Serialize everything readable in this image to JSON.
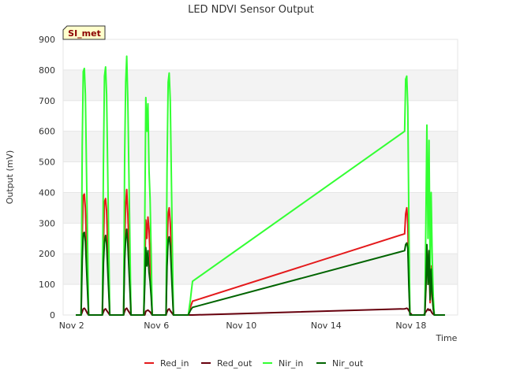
{
  "chart_data": {
    "type": "line",
    "title": "LED NDVI Sensor Output",
    "xlabel": "Time",
    "ylabel": "Output (mV)",
    "site_label": "SI_met",
    "xlim": [
      1.6,
      20.2
    ],
    "ylim": [
      0,
      900
    ],
    "x_unit": "day of November",
    "x_ticks": [
      {
        "x": 2,
        "label": "Nov 2"
      },
      {
        "x": 6,
        "label": "Nov 6"
      },
      {
        "x": 10,
        "label": "Nov 10"
      },
      {
        "x": 14,
        "label": "Nov 14"
      },
      {
        "x": 18,
        "label": "Nov 18"
      }
    ],
    "y_ticks": [
      0,
      100,
      200,
      300,
      400,
      500,
      600,
      700,
      800,
      900
    ],
    "grid": true,
    "legend": {
      "placement": "bottom"
    },
    "series": [
      {
        "name": "Red_in",
        "color": "#e41a1c",
        "x": [
          2.2,
          2.45,
          2.5,
          2.55,
          2.6,
          2.65,
          2.75,
          2.8,
          2.9,
          3.3,
          3.45,
          3.5,
          3.55,
          3.6,
          3.65,
          3.75,
          3.8,
          3.9,
          4.3,
          4.45,
          4.5,
          4.55,
          4.6,
          4.65,
          4.75,
          4.8,
          4.9,
          5.3,
          5.4,
          5.45,
          5.5,
          5.55,
          5.6,
          5.65,
          5.7,
          5.75,
          5.8,
          5.9,
          6.3,
          6.45,
          6.5,
          6.55,
          6.6,
          6.65,
          6.75,
          6.8,
          6.9,
          7.5,
          7.6,
          7.65,
          7.7,
          17.7,
          17.75,
          17.8,
          17.85,
          17.9,
          17.95,
          18.05,
          18.1,
          18.2,
          18.6,
          18.65,
          18.7,
          18.75,
          18.8,
          18.85,
          18.9,
          18.95,
          19.0,
          19.05,
          19.1,
          19.2,
          19.6
        ],
        "y": [
          0,
          0,
          250,
          390,
          395,
          350,
          120,
          0,
          0,
          0,
          0,
          220,
          370,
          380,
          340,
          110,
          0,
          0,
          0,
          0,
          240,
          360,
          410,
          330,
          120,
          0,
          0,
          0,
          0,
          150,
          310,
          250,
          320,
          280,
          180,
          90,
          0,
          0,
          0,
          0,
          200,
          330,
          350,
          300,
          100,
          0,
          0,
          0,
          25,
          35,
          45,
          265,
          330,
          350,
          300,
          120,
          0,
          0,
          0,
          0,
          0,
          0,
          80,
          220,
          120,
          200,
          40,
          160,
          60,
          20,
          0,
          0,
          0
        ]
      },
      {
        "name": "Red_out",
        "color": "#67000d",
        "x": [
          2.2,
          2.45,
          2.5,
          2.55,
          2.6,
          2.65,
          2.75,
          2.8,
          2.9,
          3.3,
          3.45,
          3.5,
          3.55,
          3.6,
          3.65,
          3.75,
          3.8,
          3.9,
          4.3,
          4.45,
          4.5,
          4.55,
          4.6,
          4.65,
          4.75,
          4.8,
          4.9,
          5.3,
          5.45,
          5.5,
          5.6,
          5.7,
          5.8,
          5.9,
          6.3,
          6.45,
          6.5,
          6.55,
          6.6,
          6.65,
          6.75,
          6.8,
          6.9,
          7.5,
          7.65,
          7.7,
          17.7,
          17.8,
          17.85,
          17.95,
          18.05,
          18.1,
          18.2,
          18.6,
          18.7,
          18.8,
          18.85,
          18.9,
          19.0,
          19.1,
          19.2,
          19.6
        ],
        "y": [
          0,
          0,
          10,
          20,
          22,
          18,
          5,
          0,
          0,
          0,
          0,
          10,
          18,
          20,
          15,
          5,
          0,
          0,
          0,
          0,
          12,
          20,
          22,
          16,
          5,
          0,
          0,
          0,
          0,
          12,
          16,
          10,
          0,
          0,
          0,
          0,
          10,
          18,
          20,
          14,
          5,
          0,
          0,
          0,
          0,
          0,
          20,
          22,
          20,
          8,
          0,
          0,
          0,
          0,
          10,
          20,
          15,
          18,
          6,
          0,
          0,
          0
        ]
      },
      {
        "name": "Nir_in",
        "color": "#33ff33",
        "x": [
          2.2,
          2.45,
          2.5,
          2.55,
          2.6,
          2.65,
          2.75,
          2.8,
          2.9,
          3.3,
          3.45,
          3.5,
          3.55,
          3.6,
          3.65,
          3.75,
          3.8,
          3.9,
          4.3,
          4.45,
          4.5,
          4.55,
          4.6,
          4.65,
          4.75,
          4.8,
          4.9,
          5.3,
          5.4,
          5.45,
          5.5,
          5.55,
          5.6,
          5.65,
          5.7,
          5.75,
          5.8,
          5.9,
          6.3,
          6.45,
          6.5,
          6.55,
          6.6,
          6.65,
          6.75,
          6.8,
          6.9,
          7.5,
          7.6,
          7.65,
          7.7,
          17.7,
          17.75,
          17.8,
          17.85,
          17.9,
          17.95,
          18.05,
          18.1,
          18.2,
          18.6,
          18.65,
          18.7,
          18.75,
          18.8,
          18.85,
          18.9,
          18.95,
          19.0,
          19.05,
          19.1,
          19.2,
          19.6
        ],
        "y": [
          0,
          0,
          550,
          795,
          805,
          720,
          250,
          0,
          0,
          0,
          0,
          500,
          780,
          810,
          720,
          240,
          0,
          0,
          0,
          0,
          520,
          760,
          845,
          700,
          230,
          0,
          0,
          0,
          0,
          310,
          710,
          600,
          690,
          470,
          380,
          200,
          0,
          0,
          0,
          0,
          480,
          760,
          790,
          700,
          230,
          0,
          0,
          0,
          50,
          80,
          110,
          600,
          770,
          780,
          680,
          300,
          0,
          0,
          0,
          0,
          0,
          0,
          300,
          620,
          250,
          570,
          150,
          400,
          200,
          60,
          0,
          0,
          0
        ]
      },
      {
        "name": "Nir_out",
        "color": "#006400",
        "x": [
          2.2,
          2.45,
          2.5,
          2.55,
          2.6,
          2.65,
          2.75,
          2.8,
          2.9,
          3.3,
          3.45,
          3.5,
          3.55,
          3.6,
          3.65,
          3.75,
          3.8,
          3.9,
          4.3,
          4.45,
          4.5,
          4.55,
          4.6,
          4.65,
          4.75,
          4.8,
          4.9,
          5.3,
          5.4,
          5.45,
          5.5,
          5.55,
          5.6,
          5.65,
          5.7,
          5.75,
          5.8,
          5.9,
          6.3,
          6.45,
          6.5,
          6.55,
          6.6,
          6.65,
          6.75,
          6.8,
          6.9,
          7.5,
          7.6,
          7.65,
          7.7,
          17.7,
          17.75,
          17.8,
          17.85,
          17.9,
          17.95,
          18.05,
          18.1,
          18.2,
          18.6,
          18.65,
          18.7,
          18.75,
          18.8,
          18.85,
          18.9,
          18.95,
          19.0,
          19.05,
          19.1,
          19.2,
          19.6
        ],
        "y": [
          0,
          0,
          180,
          265,
          270,
          240,
          80,
          0,
          0,
          0,
          0,
          170,
          240,
          260,
          230,
          75,
          0,
          0,
          0,
          0,
          180,
          250,
          280,
          230,
          80,
          0,
          0,
          0,
          0,
          100,
          220,
          160,
          210,
          140,
          110,
          60,
          0,
          0,
          0,
          0,
          160,
          245,
          255,
          225,
          75,
          0,
          0,
          0,
          15,
          20,
          25,
          210,
          230,
          235,
          220,
          90,
          0,
          0,
          0,
          0,
          0,
          0,
          90,
          230,
          100,
          210,
          50,
          150,
          70,
          20,
          0,
          0,
          0
        ]
      }
    ]
  }
}
